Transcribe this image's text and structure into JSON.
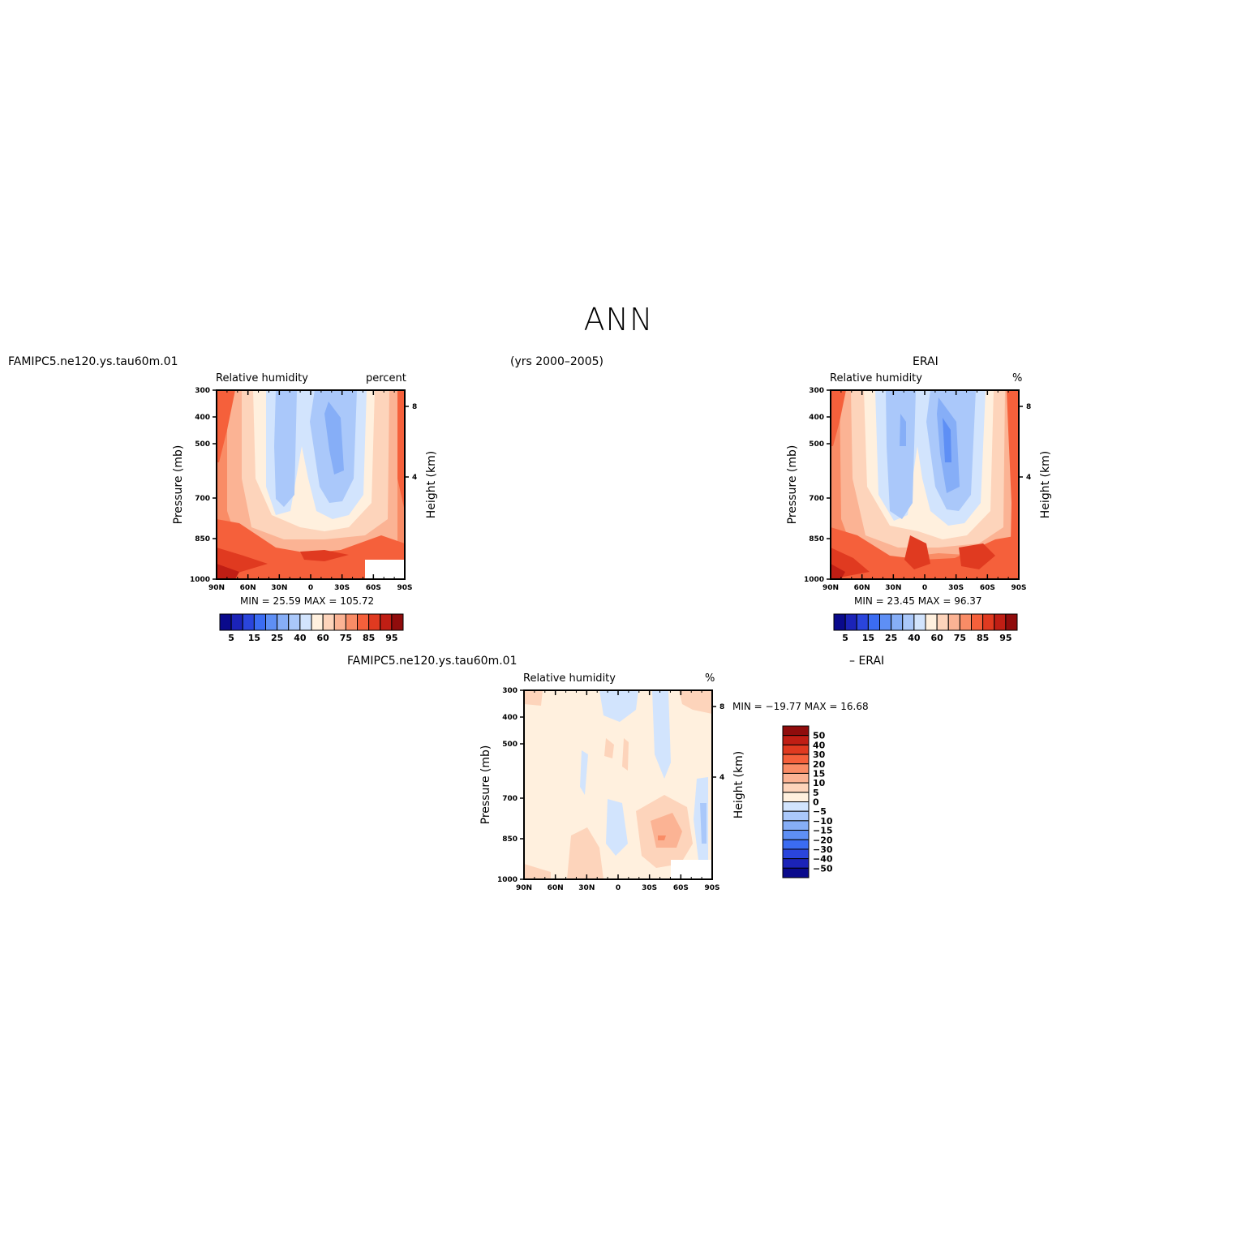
{
  "page": {
    "title": "ANN",
    "subtitle_center": "(yrs 2000–2005)",
    "top_left_case": "FAMIPC5.ne120.ys.tau60m.01",
    "top_right_case": "ERAI",
    "bottom_case_left": "FAMIPC5.ne120.ys.tau60m.01",
    "bottom_case_right": "– ERAI"
  },
  "colors": {
    "rh_scale": [
      "#0a0a8c",
      "#1b23b8",
      "#2a45dc",
      "#3b6cf2",
      "#5e8ff5",
      "#86aef7",
      "#aac8fa",
      "#d2e4fd",
      "#fff0de",
      "#fdd4bb",
      "#fbb394",
      "#f98c66",
      "#f5603b",
      "#e03a20",
      "#c01e14",
      "#900c0c"
    ],
    "diff_scale": [
      "#0a0a8c",
      "#1b23b8",
      "#2a45dc",
      "#3b6cf2",
      "#5e8ff5",
      "#86aef7",
      "#aac8fa",
      "#d2e4fd",
      "#fff0de",
      "#fdd4bb",
      "#fbb394",
      "#f98c66",
      "#f5603b",
      "#e03a20",
      "#c01e14",
      "#900c0c"
    ]
  },
  "chart_data": [
    {
      "type": "heatmap",
      "name": "model",
      "left_title": "Relative humidity",
      "right_title": "percent",
      "ylabel": "Pressure (mb)",
      "ylabel_right": "Height (km)",
      "x_ticks": [
        "90N",
        "60N",
        "30N",
        "0",
        "30S",
        "60S",
        "90S"
      ],
      "y_ticks": [
        "300",
        "400",
        "500",
        "700",
        "850",
        "1000"
      ],
      "y_ticks_right": [
        "8",
        "4"
      ],
      "stats": "MIN =   25.59   MAX = 105.72",
      "colorbar_labels": [
        "5",
        "15",
        "25",
        "40",
        "60",
        "75",
        "85",
        "95"
      ]
    },
    {
      "type": "heatmap",
      "name": "obs",
      "left_title": "Relative humidity",
      "right_title": "%",
      "ylabel": "Pressure (mb)",
      "ylabel_right": "Height (km)",
      "x_ticks": [
        "90N",
        "60N",
        "30N",
        "0",
        "30S",
        "60S",
        "90S"
      ],
      "y_ticks": [
        "300",
        "400",
        "500",
        "700",
        "850",
        "1000"
      ],
      "y_ticks_right": [
        "8",
        "4"
      ],
      "stats": "MIN =   23.45   MAX =   96.37",
      "colorbar_labels": [
        "5",
        "15",
        "25",
        "40",
        "60",
        "75",
        "85",
        "95"
      ]
    },
    {
      "type": "heatmap",
      "name": "difference",
      "left_title": "Relative humidity",
      "right_title": "%",
      "ylabel": "Pressure (mb)",
      "ylabel_right": "Height (km)",
      "x_ticks": [
        "90N",
        "60N",
        "30N",
        "0",
        "30S",
        "60S",
        "90S"
      ],
      "y_ticks": [
        "300",
        "400",
        "500",
        "700",
        "850",
        "1000"
      ],
      "y_ticks_right": [
        "8",
        "4"
      ],
      "stats": "MIN = −19.77   MAX =   16.68",
      "colorbar_labels": [
        "50",
        "40",
        "30",
        "20",
        "15",
        "10",
        "5",
        "0",
        "−5",
        "−10",
        "−15",
        "−20",
        "−30",
        "−40",
        "−50"
      ]
    }
  ]
}
